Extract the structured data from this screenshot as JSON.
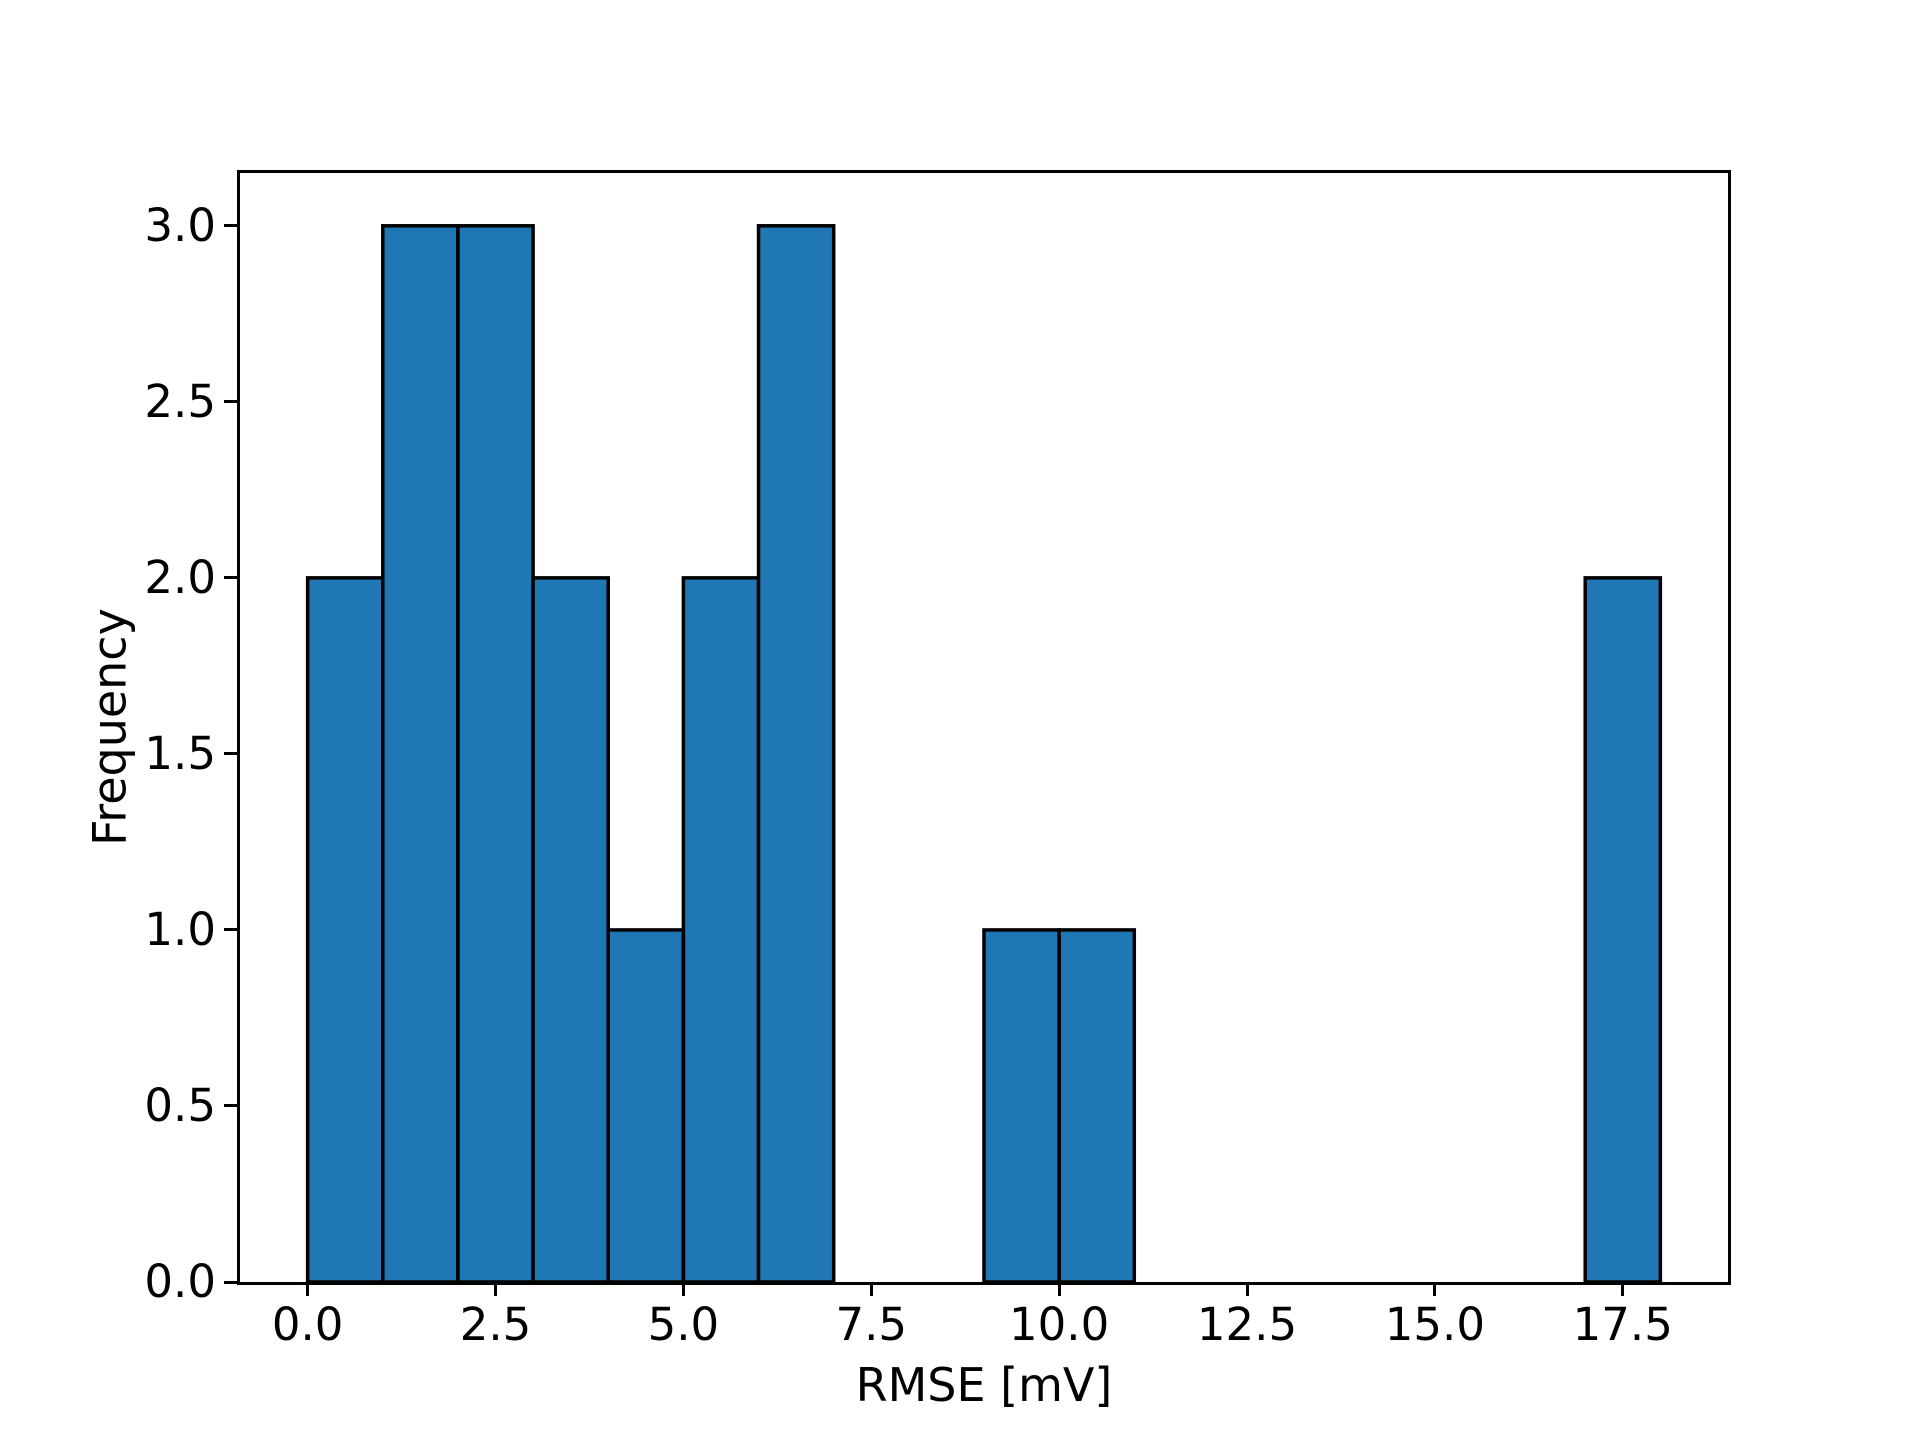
{
  "figure": {
    "background_color": "#ffffff",
    "text_color": "#000000"
  },
  "chart_data": {
    "type": "bar",
    "subtype": "histogram",
    "title": "",
    "xlabel": "RMSE [mV]",
    "ylabel": "Frequency",
    "bar_color": "#1f77b4",
    "bar_edge_color": "#000000",
    "xlim": [
      -0.9,
      18.9
    ],
    "ylim": [
      0,
      3.15
    ],
    "grid": false,
    "legend": "none",
    "x_ticks": [
      0.0,
      2.5,
      5.0,
      7.5,
      10.0,
      12.5,
      15.0,
      17.5
    ],
    "x_tick_labels": [
      "0.0",
      "2.5",
      "5.0",
      "7.5",
      "10.0",
      "12.5",
      "15.0",
      "17.5"
    ],
    "y_ticks": [
      0.0,
      0.5,
      1.0,
      1.5,
      2.0,
      2.5,
      3.0
    ],
    "y_tick_labels": [
      "0.0",
      "0.5",
      "1.0",
      "1.5",
      "2.0",
      "2.5",
      "3.0"
    ],
    "bin_width": 1,
    "bins": [
      {
        "x0": 0,
        "x1": 1,
        "count": 2
      },
      {
        "x0": 1,
        "x1": 2,
        "count": 3
      },
      {
        "x0": 2,
        "x1": 3,
        "count": 3
      },
      {
        "x0": 3,
        "x1": 4,
        "count": 2
      },
      {
        "x0": 4,
        "x1": 5,
        "count": 1
      },
      {
        "x0": 5,
        "x1": 6,
        "count": 2
      },
      {
        "x0": 6,
        "x1": 7,
        "count": 3
      },
      {
        "x0": 7,
        "x1": 8,
        "count": 0
      },
      {
        "x0": 8,
        "x1": 9,
        "count": 0
      },
      {
        "x0": 9,
        "x1": 10,
        "count": 1
      },
      {
        "x0": 10,
        "x1": 11,
        "count": 1
      },
      {
        "x0": 11,
        "x1": 12,
        "count": 0
      },
      {
        "x0": 12,
        "x1": 13,
        "count": 0
      },
      {
        "x0": 13,
        "x1": 14,
        "count": 0
      },
      {
        "x0": 14,
        "x1": 15,
        "count": 0
      },
      {
        "x0": 15,
        "x1": 16,
        "count": 0
      },
      {
        "x0": 16,
        "x1": 17,
        "count": 0
      },
      {
        "x0": 17,
        "x1": 18,
        "count": 2
      }
    ]
  }
}
